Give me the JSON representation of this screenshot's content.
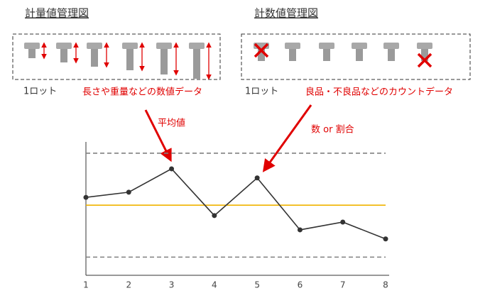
{
  "variables": {
    "title": "計量値管理図",
    "lot_label": "1ロット",
    "description": "長さや重量などの数値データ"
  },
  "attributes": {
    "title": "計数値管理図",
    "lot_label": "1ロット",
    "description": "良品・不良品などのカウントデータ"
  },
  "annotations": {
    "mean": "平均値",
    "count_ratio": "数 or 割合"
  },
  "chart_data": {
    "type": "line",
    "x": [
      1,
      2,
      3,
      4,
      5,
      6,
      7,
      8
    ],
    "values": [
      6.0,
      6.4,
      8.2,
      4.6,
      7.5,
      3.5,
      4.1,
      2.8
    ],
    "color": "#333333",
    "xlim": [
      1,
      8
    ],
    "xticks": [
      1,
      2,
      3,
      4,
      5,
      6,
      7,
      8
    ],
    "ylim": [
      0,
      10
    ],
    "ucl": 9.4,
    "cl": 5.4,
    "lcl": 1.4,
    "limit_color": "#808080",
    "center_color": "#f0b400"
  }
}
